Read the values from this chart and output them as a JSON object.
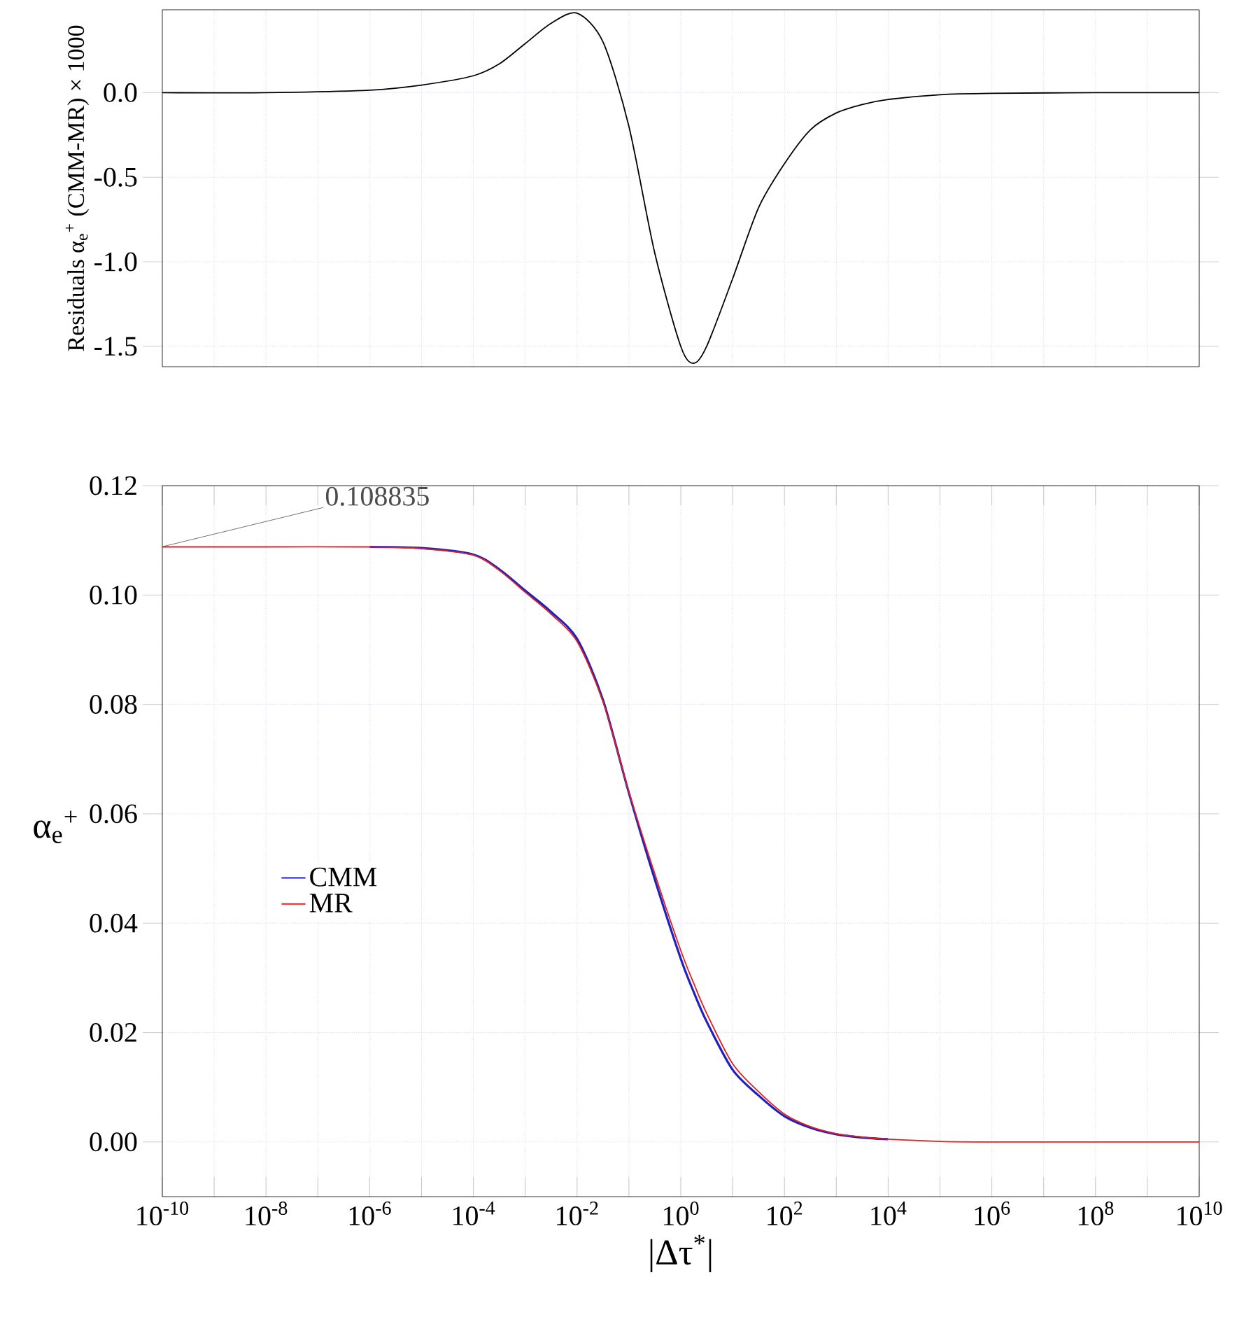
{
  "chart_data": [
    {
      "type": "line",
      "ylabel": "Residuals α$_{e}$$^{+}$ (CMM-MR) × 1000",
      "log": "x",
      "grid": true,
      "tick_labels": "y",
      "xlim": [
        1e-10,
        10000000000.0
      ],
      "ylim": [
        -1.62,
        0.49
      ],
      "xticks": [
        {
          "value": 1e-10,
          "label": null
        },
        {
          "value": 1e-09,
          "label": null
        },
        {
          "value": 1e-08,
          "label": null
        },
        {
          "value": 1e-07,
          "label": null
        },
        {
          "value": 1e-06,
          "label": null
        },
        {
          "value": 1e-05,
          "label": null
        },
        {
          "value": 0.0001,
          "label": null
        },
        {
          "value": 0.001,
          "label": null
        },
        {
          "value": 0.01,
          "label": null
        },
        {
          "value": 0.1,
          "label": null
        },
        {
          "value": 1,
          "label": null
        },
        {
          "value": 10,
          "label": null
        },
        {
          "value": 100,
          "label": null
        },
        {
          "value": 1000.0,
          "label": null
        },
        {
          "value": 10000.0,
          "label": null
        },
        {
          "value": 100000.0,
          "label": null
        },
        {
          "value": 1000000.0,
          "label": null
        },
        {
          "value": 10000000.0,
          "label": null
        },
        {
          "value": 100000000.0,
          "label": null
        },
        {
          "value": 1000000000.0,
          "label": null
        },
        {
          "value": 10000000000.0,
          "label": null
        }
      ],
      "yticks": [
        {
          "value": -1.5,
          "label": "-1.5"
        },
        {
          "value": -1.0,
          "label": "-1.0"
        },
        {
          "value": -0.5,
          "label": "-0.5"
        },
        {
          "value": 0,
          "label": "0.0"
        }
      ],
      "x": [
        1e-10,
        1e-08,
        1e-06,
        1e-05,
        0.0001,
        0.000316,
        0.001,
        0.00316,
        0.01,
        0.0316,
        0.1,
        0.316,
        1,
        1.78,
        3.16,
        10,
        31.6,
        100,
        316,
        1000,
        3160,
        10000.0,
        100000.0,
        1000000.0,
        100000000.0,
        10000000000.0
      ],
      "series": [
        {
          "color": "#000000",
          "values": [
            0,
            0,
            0.015,
            0.045,
            0.1,
            0.17,
            0.29,
            0.41,
            0.47,
            0.3,
            -0.2,
            -0.95,
            -1.5,
            -1.6,
            -1.5,
            -1.1,
            -0.68,
            -0.42,
            -0.22,
            -0.12,
            -0.07,
            -0.04,
            -0.012,
            -0.004,
            0,
            0
          ]
        }
      ]
    },
    {
      "type": "line",
      "xlabel": "|Δτ$^{*}$|",
      "ylabel": "α$_{e}$$^{+}$",
      "log": "x",
      "grid": true,
      "legend": "left",
      "marker": "none",
      "xlim": [
        1e-10,
        10000000000.0
      ],
      "ylim": [
        -0.01,
        0.12
      ],
      "xticks": [
        {
          "value": 1e-10,
          "label": "10$^{-10}$"
        },
        {
          "value": 1e-09,
          "label": null
        },
        {
          "value": 1e-08,
          "label": "10$^{-8}$"
        },
        {
          "value": 1e-07,
          "label": null
        },
        {
          "value": 1e-06,
          "label": "10$^{-6}$"
        },
        {
          "value": 1e-05,
          "label": null
        },
        {
          "value": 0.0001,
          "label": "10$^{-4}$"
        },
        {
          "value": 0.001,
          "label": null
        },
        {
          "value": 0.01,
          "label": "10$^{-2}$"
        },
        {
          "value": 0.1,
          "label": null
        },
        {
          "value": 1,
          "label": "10$^{0}$"
        },
        {
          "value": 10,
          "label": null
        },
        {
          "value": 100,
          "label": "10$^{2}$"
        },
        {
          "value": 1000.0,
          "label": null
        },
        {
          "value": 10000.0,
          "label": "10$^{4}$"
        },
        {
          "value": 100000.0,
          "label": null
        },
        {
          "value": 1000000.0,
          "label": "10$^{6}$"
        },
        {
          "value": 10000000.0,
          "label": null
        },
        {
          "value": 100000000.0,
          "label": "10$^{8}$"
        },
        {
          "value": 1000000000.0,
          "label": null
        },
        {
          "value": 10000000000.0,
          "label": "10$^{10}$"
        }
      ],
      "yticks": [
        {
          "value": 0,
          "label": "0.00"
        },
        {
          "value": 0.02,
          "label": "0.02"
        },
        {
          "value": 0.04,
          "label": "0.04"
        },
        {
          "value": 0.06,
          "label": "0.06"
        },
        {
          "value": 0.08,
          "label": "0.08"
        },
        {
          "value": 0.1,
          "label": "0.10"
        },
        {
          "value": 0.12,
          "label": "0.12"
        }
      ],
      "annotations": [
        {
          "text": "0.108835",
          "x": 1e-10,
          "y": 0.108835
        }
      ],
      "x": [
        1e-10,
        1e-08,
        1e-06,
        1e-05,
        0.0001,
        0.000316,
        0.001,
        0.00316,
        0.01,
        0.0316,
        0.1,
        0.316,
        1,
        1.78,
        3.16,
        10,
        31.6,
        100,
        316,
        1000,
        3160,
        10000.0,
        100000.0,
        1000000.0,
        100000000.0,
        10000000000.0
      ],
      "series": [
        {
          "name": "CMM",
          "color": "#2020c0",
          "values": [
            null,
            null,
            0.1088,
            0.1086,
            0.1074,
            0.1047,
            0.1008,
            0.0969,
            0.092,
            0.0808,
            0.0638,
            0.048,
            0.0335,
            0.0274,
            0.022,
            0.0132,
            0.0085,
            0.0047,
            0.0026,
            0.0014,
            0.0008,
            0.0005,
            null,
            null,
            null,
            null
          ]
        },
        {
          "name": "MR",
          "color": "#e02020",
          "values": [
            0.1088,
            0.1088,
            0.1088,
            0.1085,
            0.1073,
            0.1045,
            0.1005,
            0.0965,
            0.0915,
            0.0805,
            0.064,
            0.049,
            0.035,
            0.029,
            0.0235,
            0.0143,
            0.0092,
            0.0051,
            0.0028,
            0.0015,
            0.0009,
            0.0005,
            0.0001,
            0,
            0,
            0
          ]
        }
      ]
    }
  ]
}
